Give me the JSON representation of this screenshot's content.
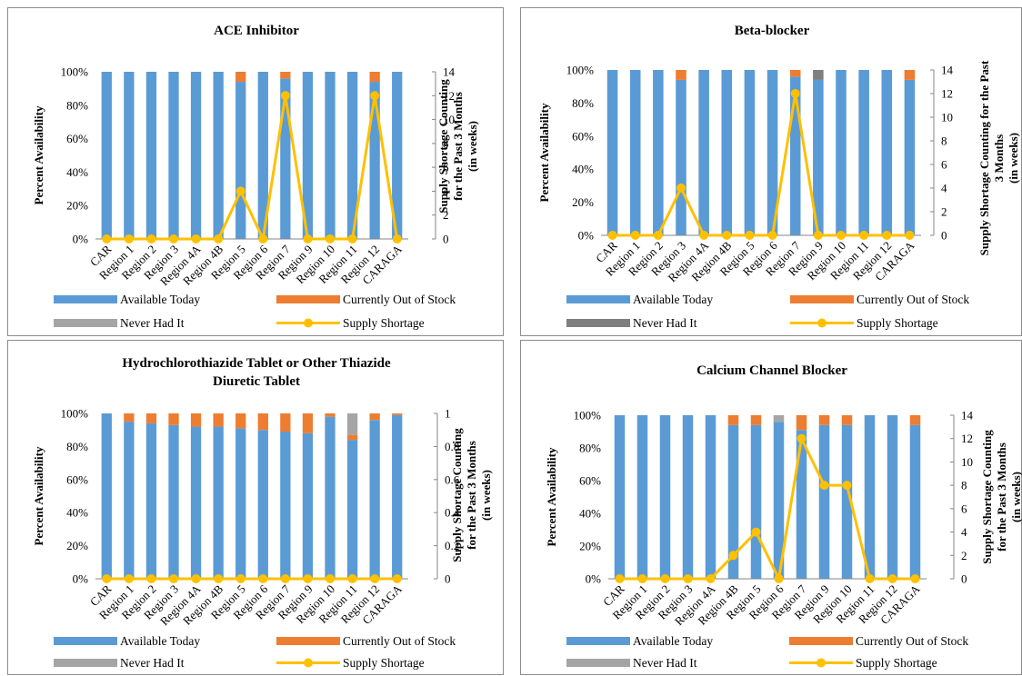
{
  "legend_labels": {
    "available": "Available Today",
    "out": "Currently Out of Stock",
    "never": "Never Had It",
    "shortage": "Supply Shortage"
  },
  "colors": {
    "available": "#5b9bd5",
    "out": "#ed7d31",
    "never_light": "#a5a5a5",
    "never_dark": "#7f7f7f",
    "shortage": "#ffc000",
    "border": "#8c8c8c"
  },
  "chart_data": [
    {
      "type": "bar",
      "stacked": true,
      "title": "ACE Inhibitor",
      "ylabel": "Percent Availability",
      "y2label": "Supply Shortage Counting for the Past 3 Months (in weeks)",
      "y2label_lines": [
        "Supply Shortage Counting",
        "for the Past 3 Months",
        "(in weeks)"
      ],
      "ylim": [
        0,
        100
      ],
      "y2lim": [
        0,
        14
      ],
      "y_ticks": [
        "0%",
        "20%",
        "40%",
        "60%",
        "80%",
        "100%"
      ],
      "y2_ticks": [
        "0",
        "2",
        "4",
        "6",
        "8",
        "10",
        "12",
        "14"
      ],
      "categories": [
        "CAR",
        "Region 1",
        "Region 2",
        "Region 3",
        "Region 4A",
        "Region 4B",
        "Region 5",
        "Region 6",
        "Region 7",
        "Region 9",
        "Region 10",
        "Region 11",
        "Region 12",
        "CARAGA"
      ],
      "series": [
        {
          "name": "Available Today",
          "values": [
            100,
            100,
            100,
            100,
            100,
            100,
            94,
            100,
            96,
            100,
            100,
            100,
            94,
            100
          ]
        },
        {
          "name": "Currently Out of Stock",
          "values": [
            0,
            0,
            0,
            0,
            0,
            0,
            6,
            0,
            4,
            0,
            0,
            0,
            6,
            0
          ]
        },
        {
          "name": "Never Had It",
          "values": [
            0,
            0,
            0,
            0,
            0,
            0,
            0,
            0,
            0,
            0,
            0,
            0,
            0,
            0
          ]
        },
        {
          "name": "Supply Shortage",
          "type": "line",
          "axis": "secondary",
          "values": [
            0,
            0,
            0,
            0,
            0,
            0,
            4,
            0,
            12,
            0,
            0,
            0,
            12,
            0
          ]
        }
      ],
      "legend": "bottom",
      "never_color": "light"
    },
    {
      "type": "bar",
      "stacked": true,
      "title": "Beta-blocker",
      "ylabel": "Percent Availability",
      "y2label": "Supply Shortage Counting for the Past 3 Months (in weeks)",
      "y2label_lines": [
        "Supply Shortage Counting for the Past",
        "3 Months",
        "(in weeks)"
      ],
      "ylim": [
        0,
        100
      ],
      "y2lim": [
        0,
        14
      ],
      "y_ticks": [
        "0%",
        "20%",
        "40%",
        "60%",
        "80%",
        "100%"
      ],
      "y2_ticks": [
        "0",
        "2",
        "4",
        "6",
        "8",
        "10",
        "12",
        "14"
      ],
      "categories": [
        "CAR",
        "Region 1",
        "Region 2",
        "Region 3",
        "Region 4A",
        "Region 4B",
        "Region 5",
        "Region 6",
        "Region 7",
        "Region 9",
        "Region 10",
        "Region 11",
        "Region 12",
        "CARAGA"
      ],
      "series": [
        {
          "name": "Available Today",
          "values": [
            100,
            100,
            100,
            94,
            100,
            100,
            100,
            100,
            96,
            94,
            100,
            100,
            100,
            94
          ]
        },
        {
          "name": "Currently Out of Stock",
          "values": [
            0,
            0,
            0,
            6,
            0,
            0,
            0,
            0,
            4,
            0,
            0,
            0,
            0,
            6
          ]
        },
        {
          "name": "Never Had It",
          "values": [
            0,
            0,
            0,
            0,
            0,
            0,
            0,
            0,
            0,
            6,
            0,
            0,
            0,
            0
          ]
        },
        {
          "name": "Supply Shortage",
          "type": "line",
          "axis": "secondary",
          "values": [
            0,
            0,
            0,
            4,
            0,
            0,
            0,
            0,
            12,
            0,
            0,
            0,
            0,
            0
          ]
        }
      ],
      "legend": "bottom",
      "never_color": "dark"
    },
    {
      "type": "bar",
      "stacked": true,
      "title": "Hydrochlorothiazide Tablet or Other Thiazide Diuretic Tablet",
      "title_lines": [
        "Hydrochlorothiazide Tablet or Other Thiazide",
        "Diuretic Tablet"
      ],
      "ylabel": "Percent Availability",
      "y2label": "Supply Shortage Counting for the Past 3 Months (in weeks)",
      "y2label_lines": [
        "Supply Shortage Counting",
        "for the Past 3 Months",
        "(in weeks)"
      ],
      "ylim": [
        0,
        100
      ],
      "y2lim": [
        0,
        1
      ],
      "y_ticks": [
        "0%",
        "20%",
        "40%",
        "60%",
        "80%",
        "100%"
      ],
      "y2_ticks": [
        "0",
        "0.2",
        "0.4",
        "0.6",
        "0.8",
        "1"
      ],
      "categories": [
        "CAR",
        "Region 1",
        "Region 2",
        "Region 3",
        "Region 4A",
        "Region 4B",
        "Region 5",
        "Region 6",
        "Region 7",
        "Region 9",
        "Region 10",
        "Region 11",
        "Region 12",
        "CARAGA"
      ],
      "series": [
        {
          "name": "Available Today",
          "values": [
            100,
            95,
            94,
            93,
            92,
            92,
            91,
            90,
            89,
            88,
            98,
            84,
            96,
            99
          ]
        },
        {
          "name": "Currently Out of Stock",
          "values": [
            0,
            5,
            6,
            7,
            8,
            8,
            9,
            10,
            11,
            12,
            2,
            3,
            4,
            1
          ]
        },
        {
          "name": "Never Had It",
          "values": [
            0,
            0,
            0,
            0,
            0,
            0,
            0,
            0,
            0,
            0,
            0,
            13,
            0,
            0
          ]
        },
        {
          "name": "Supply Shortage",
          "type": "line",
          "axis": "secondary",
          "values": [
            0,
            0,
            0,
            0,
            0,
            0,
            0,
            0,
            0,
            0,
            0,
            0,
            0,
            0
          ]
        }
      ],
      "legend": "bottom",
      "never_color": "light"
    },
    {
      "type": "bar",
      "stacked": true,
      "title": "Calcium Channel Blocker",
      "ylabel": "Percent Availability",
      "y2label": "Supply Shortage Counting for the Past 3 Months (in weeks)",
      "y2label_lines": [
        "Supply Shortage Counting",
        "for the Past 3 Months",
        "(in weeks)"
      ],
      "ylim": [
        0,
        100
      ],
      "y2lim": [
        0,
        14
      ],
      "y_ticks": [
        "0%",
        "20%",
        "40%",
        "60%",
        "80%",
        "100%"
      ],
      "y2_ticks": [
        "0",
        "2",
        "4",
        "6",
        "8",
        "10",
        "12",
        "14"
      ],
      "categories": [
        "CAR",
        "Region 1",
        "Region 2",
        "Region 3",
        "Region 4A",
        "Region 4B",
        "Region 5",
        "Region 6",
        "Region 7",
        "Region 9",
        "Region 10",
        "Region 11",
        "Region 12",
        "CARAGA"
      ],
      "series": [
        {
          "name": "Available Today",
          "values": [
            100,
            100,
            100,
            100,
            100,
            94,
            94,
            96,
            91,
            94,
            94,
            100,
            100,
            94
          ]
        },
        {
          "name": "Currently Out of Stock",
          "values": [
            0,
            0,
            0,
            0,
            0,
            6,
            6,
            0,
            9,
            6,
            6,
            0,
            0,
            6
          ]
        },
        {
          "name": "Never Had It",
          "values": [
            0,
            0,
            0,
            0,
            0,
            0,
            0,
            4,
            0,
            0,
            0,
            0,
            0,
            0
          ]
        },
        {
          "name": "Supply Shortage",
          "type": "line",
          "axis": "secondary",
          "values": [
            0,
            0,
            0,
            0,
            0,
            2,
            4,
            0,
            12,
            8,
            8,
            0,
            0,
            0
          ]
        }
      ],
      "legend": "bottom",
      "never_color": "light"
    }
  ]
}
